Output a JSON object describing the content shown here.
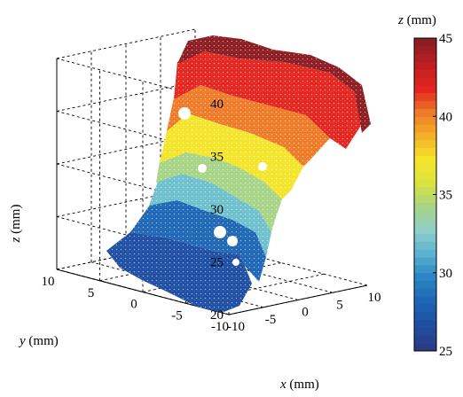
{
  "chart_data": {
    "type": "scatter",
    "plot_kind": "3d-point-cloud",
    "axes": {
      "x": {
        "label_var": "x",
        "label_unit": " (mm)",
        "range": [
          -10,
          10
        ],
        "ticks": [
          -10,
          -5,
          0,
          5,
          10
        ]
      },
      "y": {
        "label_var": "y",
        "label_unit": " (mm)",
        "range": [
          -10,
          10
        ],
        "ticks": [
          -10,
          -5,
          0,
          5,
          10
        ]
      },
      "z": {
        "label_var": "z",
        "label_unit": " (mm)",
        "range": [
          20,
          40
        ],
        "ticks": [
          20,
          25,
          30,
          35,
          40
        ]
      }
    },
    "grid": true,
    "colorbar": {
      "label_var": "z",
      "label_unit": " (mm)",
      "range": [
        25,
        45
      ],
      "ticks": [
        25,
        30,
        35,
        40,
        45
      ],
      "colormap": [
        "#2b3c86",
        "#1f4fa3",
        "#1f67b5",
        "#2b86c3",
        "#5bb3d0",
        "#8fcfc8",
        "#a7d486",
        "#dbe23f",
        "#f4e52a",
        "#f3b12a",
        "#ee7b27",
        "#e3261f",
        "#c01f22",
        "#8c1d22"
      ]
    },
    "surface_regions": [
      {
        "z_band": [
          24.5,
          27
        ],
        "color": "#1f4fa3"
      },
      {
        "z_band": [
          27,
          30
        ],
        "color": "#1f67b5"
      },
      {
        "z_band": [
          30,
          32
        ],
        "color": "#6fc0cd"
      },
      {
        "z_band": [
          32,
          35
        ],
        "color": "#a7d486"
      },
      {
        "z_band": [
          35,
          38
        ],
        "color": "#f4e52a"
      },
      {
        "z_band": [
          38,
          40
        ],
        "color": "#ee7b27"
      },
      {
        "z_band": [
          40,
          43
        ],
        "color": "#e3261f"
      },
      {
        "z_band": [
          43,
          45
        ],
        "color": "#8c1d22"
      }
    ]
  }
}
